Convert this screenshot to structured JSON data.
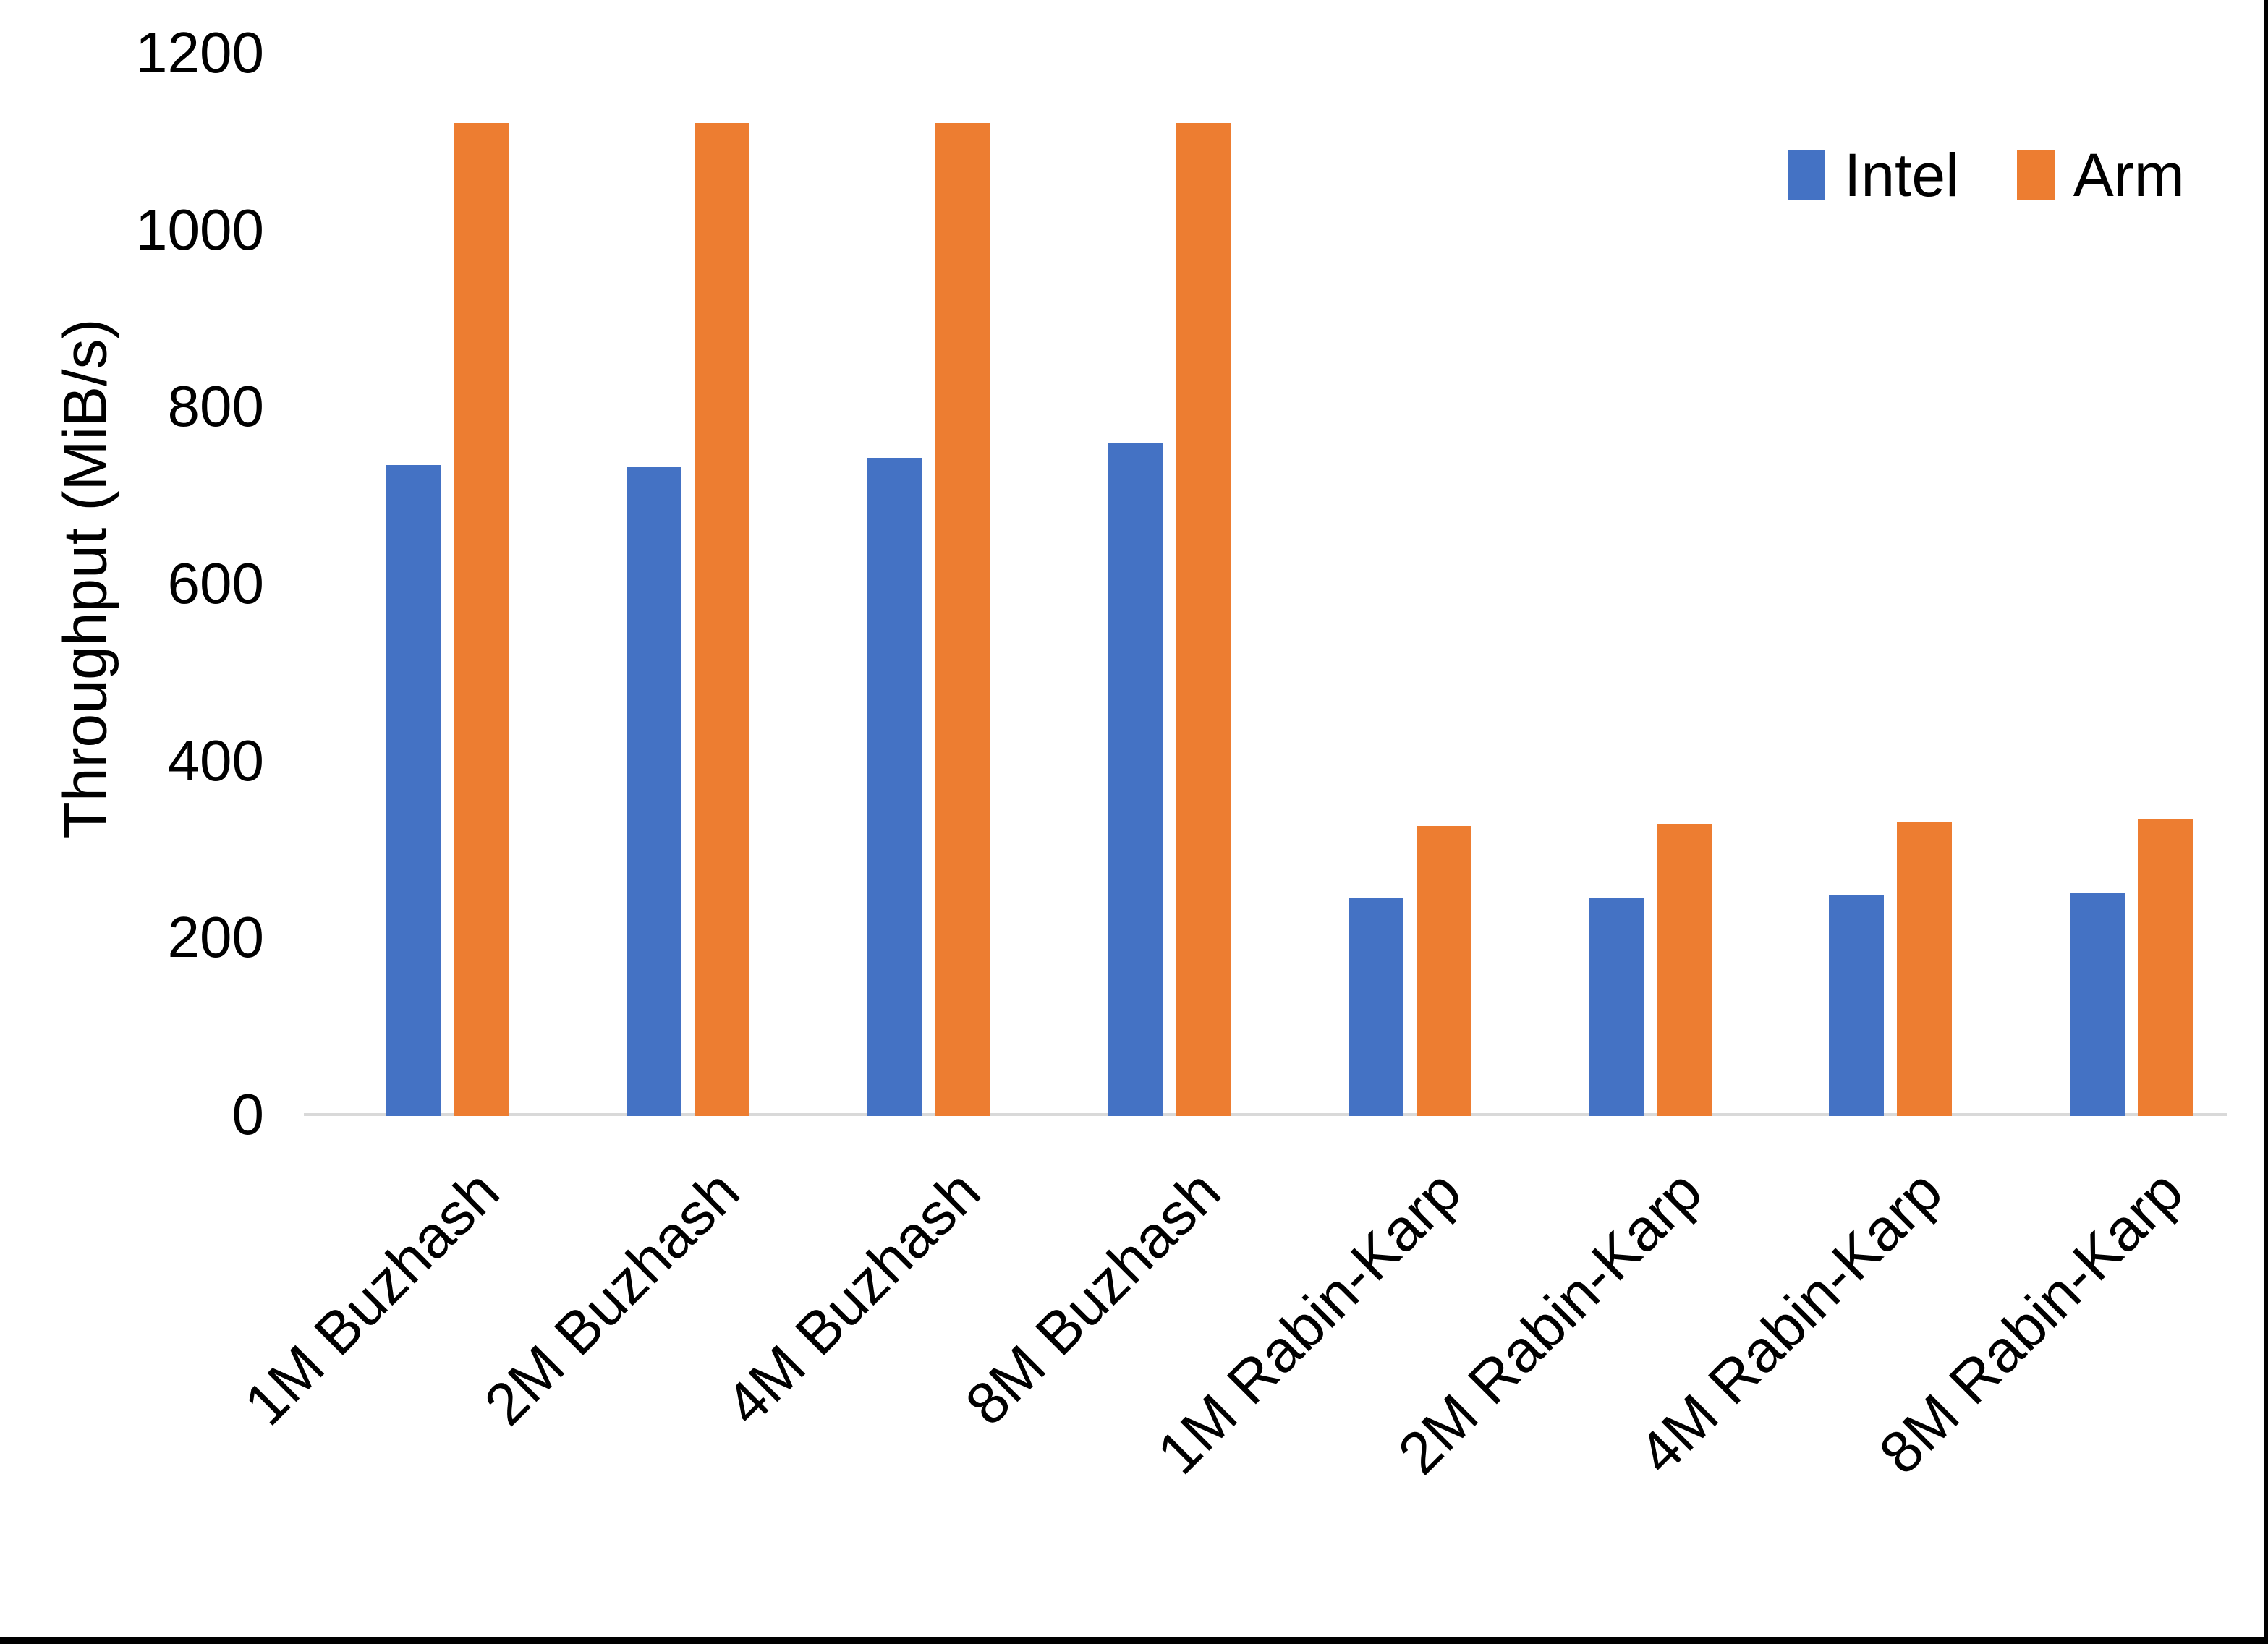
{
  "chart_data": {
    "type": "bar",
    "title": "",
    "categories": [
      "1M Buzhash",
      "2M Buzhash",
      "4M Buzhash",
      "8M Buzhash",
      "1M Rabin-Karp",
      "2M Rabin-Karp",
      "4M Rabin-Karp",
      "8M Rabin-Karp"
    ],
    "series": [
      {
        "name": "Intel",
        "color": "#4472C4",
        "values": [
          736,
          734,
          744,
          760,
          246,
          246,
          250,
          252
        ]
      },
      {
        "name": "Arm",
        "color": "#ED7D31",
        "values": [
          1122,
          1122,
          1122,
          1122,
          328,
          330,
          333,
          335
        ]
      }
    ],
    "xlabel": "",
    "ylabel": "Throughput (MiB/s)",
    "ylim": [
      0,
      1200
    ],
    "yticks": [
      0,
      200,
      400,
      600,
      800,
      1000,
      1200
    ],
    "grid": false,
    "legend_position": "top-right",
    "x_label_rotation_deg": 45,
    "axis_line_color": "#D9D9D9",
    "text_color": "#000000",
    "background_color": "#FFFFFF",
    "edge_border_color": "#000000"
  }
}
